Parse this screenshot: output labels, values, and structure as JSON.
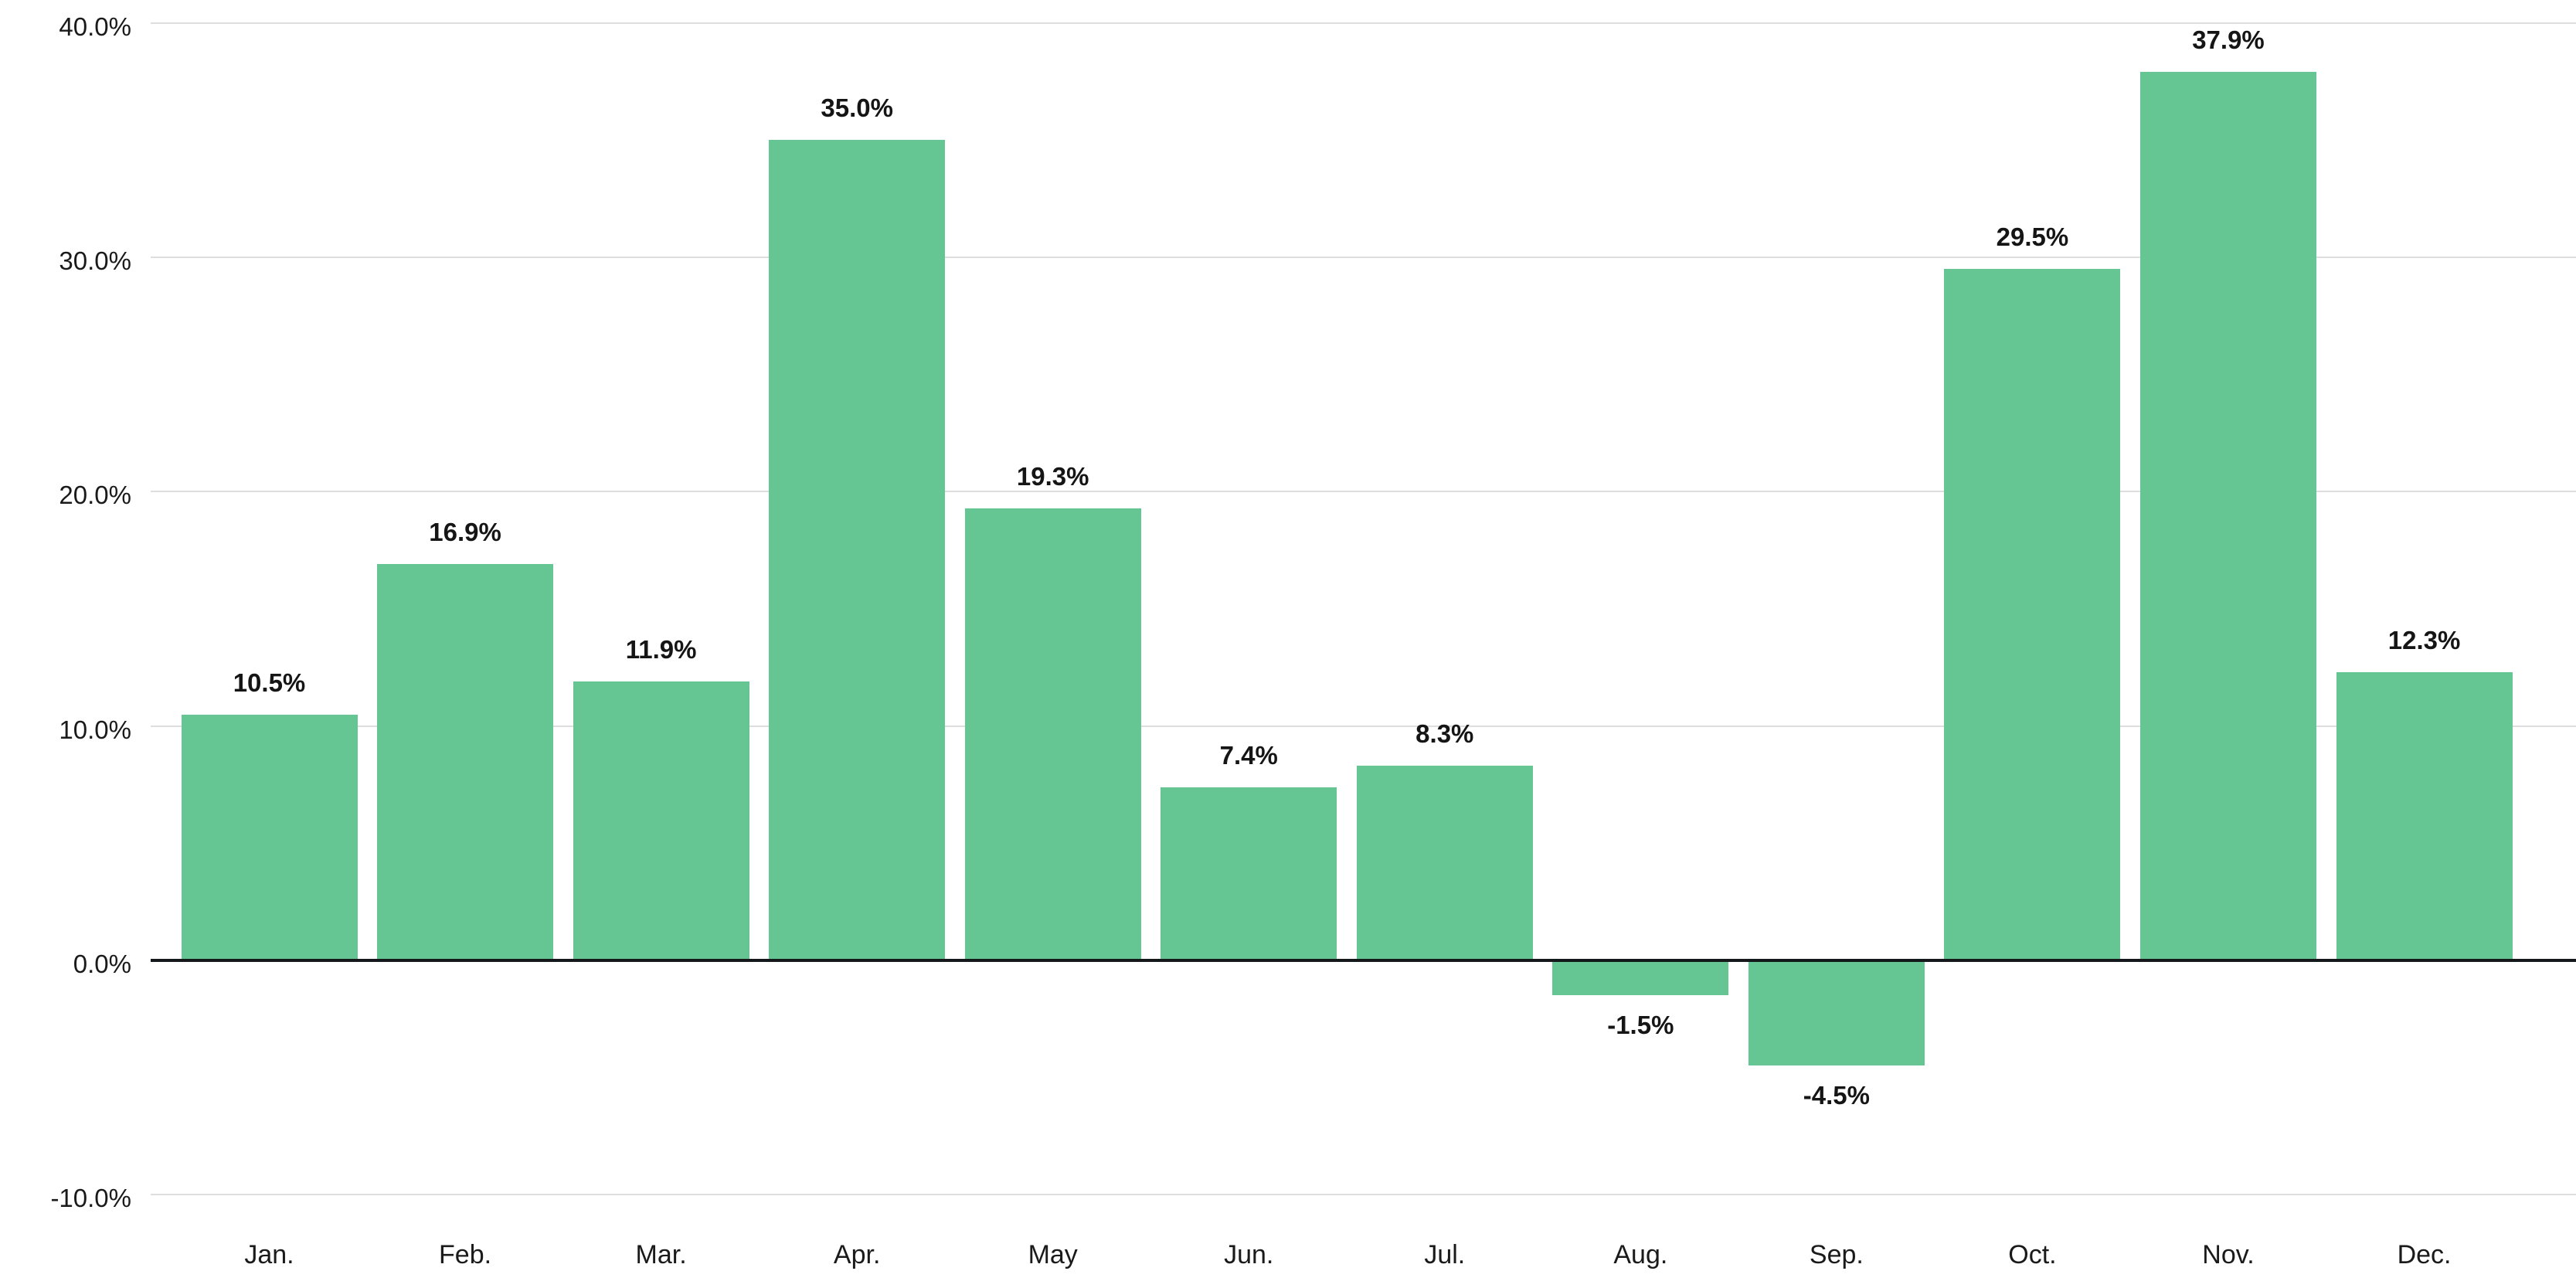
{
  "chart_data": {
    "type": "bar",
    "title": "",
    "xlabel": "",
    "ylabel": "",
    "categories": [
      "Jan.",
      "Feb.",
      "Mar.",
      "Apr.",
      "May",
      "Jun.",
      "Jul.",
      "Aug.",
      "Sep.",
      "Oct.",
      "Nov.",
      "Dec."
    ],
    "values": [
      10.5,
      16.9,
      11.9,
      35.0,
      19.3,
      7.4,
      8.3,
      -1.5,
      -4.5,
      29.5,
      37.9,
      12.3
    ],
    "value_labels": [
      "10.5%",
      "16.9%",
      "11.9%",
      "35.0%",
      "19.3%",
      "7.4%",
      "8.3%",
      "-1.5%",
      "-4.5%",
      "29.5%",
      "37.9%",
      "12.3%"
    ],
    "yticks": [
      40,
      30,
      20,
      10,
      0,
      -10
    ],
    "ytick_labels": [
      "40.0%",
      "30.0%",
      "20.0%",
      "10.0%",
      "0.0%",
      "-10.0%"
    ],
    "ylim": [
      -10,
      40
    ],
    "grid": "horizontal",
    "legend": "none",
    "colors": {
      "bar": "#66c693",
      "gridline": "#dedede",
      "zero_line": "#14181b",
      "tick_label": "#1a1a1a",
      "value_label": "#151515",
      "month_label": "#1a1a1a"
    }
  }
}
